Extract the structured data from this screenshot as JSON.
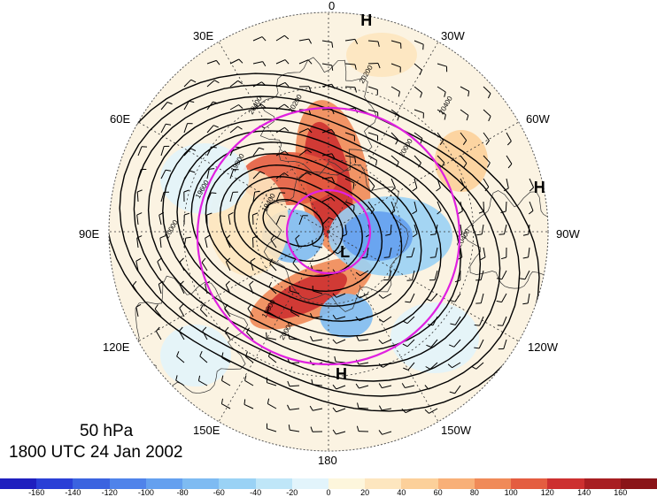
{
  "title": {
    "level": "50 hPa",
    "valid_time": "1800 UTC 24 Jan 2002"
  },
  "longitude_labels": [
    "0",
    "30W",
    "60W",
    "90W",
    "120W",
    "150W",
    "180",
    "150E",
    "120E",
    "90E",
    "60E",
    "30E"
  ],
  "pressure_systems": [
    {
      "label": "H",
      "angle_deg": 10,
      "radius_frac": 0.98
    },
    {
      "label": "H",
      "angle_deg": 78,
      "radius_frac": 0.98
    },
    {
      "label": "H",
      "angle_deg": 175,
      "radius_frac": 0.65
    },
    {
      "label": "L",
      "angle_deg": 140,
      "radius_frac": 0.12
    }
  ],
  "contour_labels": [
    "20400",
    "20200",
    "20000",
    "19800",
    "19600",
    "19400",
    "20400",
    "20200",
    "20000",
    "19800",
    "20400",
    "20000"
  ],
  "contour_values": [
    19400,
    19600,
    19800,
    20000,
    20200,
    20400
  ],
  "colorbar": {
    "ticks": [
      "-160",
      "-140",
      "-120",
      "-100",
      "-80",
      "-60",
      "-40",
      "-20",
      "0",
      "20",
      "40",
      "60",
      "80",
      "100",
      "120",
      "140",
      "160"
    ],
    "colors": [
      "#1f1fbf",
      "#2a3fd6",
      "#3b63e0",
      "#4f83ea",
      "#64a0ef",
      "#7ebbf2",
      "#9ad2f5",
      "#bfe6f8",
      "#e2f4fb",
      "#fdf6dc",
      "#fde6bf",
      "#fcd09a",
      "#f8b078",
      "#f08a58",
      "#e45d40",
      "#cd3030",
      "#a81e22",
      "#8a1418"
    ]
  },
  "colors": {
    "highlight_circles": "#e020e0",
    "contour": "#000000",
    "coast": "#333333"
  }
}
